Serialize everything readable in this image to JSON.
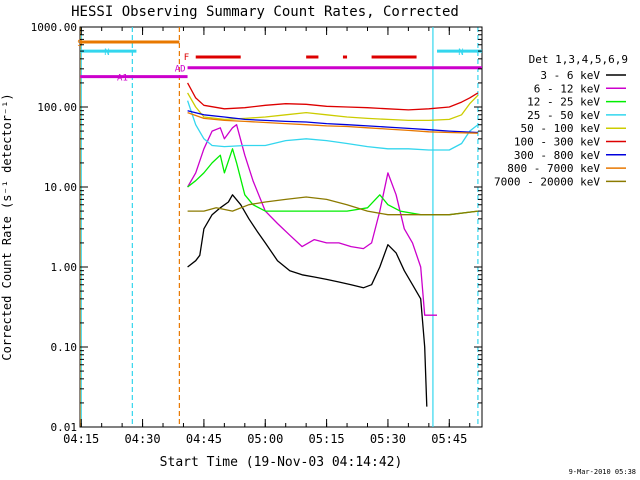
{
  "chart_data": {
    "type": "line",
    "title": "HESSI Observing Summary Count Rates, Corrected",
    "xlabel": "Start Time (19-Nov-03 04:14:42)",
    "ylabel": "Corrected Count Rate (s⁻¹ detector⁻¹)",
    "y_log_scale": true,
    "ylim": [
      0.01,
      1000
    ],
    "x_time_range": [
      "04:14:42",
      "05:53:00"
    ],
    "x_ticks": [
      "04:15",
      "04:30",
      "04:45",
      "05:00",
      "05:15",
      "05:30",
      "05:45"
    ],
    "y_ticks": [
      "0.01",
      "0.10",
      "1.00",
      "10.00",
      "100.00",
      "1000.00"
    ],
    "legend_title": "Det 1,3,4,5,6,9",
    "legend_position": "right",
    "footer": "9-Mar-2010 05:38",
    "markers": {
      "flags": [
        {
          "label": "S",
          "color": "#e87800",
          "y": 650,
          "t0": "04:14:45",
          "t1": "04:39:00"
        },
        {
          "label": "N",
          "color": "#33d6ee",
          "y": 500,
          "t0": "04:14:45",
          "t1": "04:28:30"
        },
        {
          "label": "N",
          "color": "#33d6ee",
          "y": 500,
          "t0": "05:42:00",
          "t1": "05:53:00"
        },
        {
          "label": "AD",
          "color": "#cc00cc",
          "y": 310,
          "t0": "04:41:00",
          "t1": "05:53:00"
        },
        {
          "label": "A1",
          "color": "#cc00cc",
          "y": 240,
          "t0": "04:14:45",
          "t1": "04:41:00"
        }
      ],
      "flare_label": "F",
      "flare_segments": [
        [
          "04:43:00",
          "04:54:00"
        ],
        [
          "05:10:00",
          "05:13:00"
        ],
        [
          "05:19:00",
          "05:20:00"
        ],
        [
          "05:26:00",
          "05:37:00"
        ]
      ],
      "vlines": [
        {
          "t": "04:14:50",
          "color": "#e87800",
          "style": "solid"
        },
        {
          "t": "04:15:00",
          "color": "#33d6ee",
          "style": "solid"
        },
        {
          "t": "04:27:30",
          "color": "#33d6ee",
          "style": "dashed"
        },
        {
          "t": "04:39:00",
          "color": "#e87800",
          "style": "dashed"
        },
        {
          "t": "05:41:00",
          "color": "#33d6ee",
          "style": "solid"
        },
        {
          "t": "05:52:00",
          "color": "#33d6ee",
          "style": "dashed"
        }
      ]
    },
    "series": [
      {
        "name": "3 - 6 keV",
        "color": "#000000",
        "points": [
          [
            "04:41:00",
            1.0
          ],
          [
            "04:43:00",
            1.2
          ],
          [
            "04:44:00",
            1.4
          ],
          [
            "04:45:00",
            3.0
          ],
          [
            "04:47:00",
            4.5
          ],
          [
            "04:49:00",
            5.5
          ],
          [
            "04:51:00",
            6.5
          ],
          [
            "04:52:00",
            8.0
          ],
          [
            "04:54:00",
            6.0
          ],
          [
            "04:56:00",
            4.0
          ],
          [
            "04:58:00",
            2.8
          ],
          [
            "05:00:00",
            2.0
          ],
          [
            "05:03:00",
            1.2
          ],
          [
            "05:06:00",
            0.9
          ],
          [
            "05:09:00",
            0.8
          ],
          [
            "05:12:00",
            0.75
          ],
          [
            "05:15:00",
            0.7
          ],
          [
            "05:18:00",
            0.65
          ],
          [
            "05:21:00",
            0.6
          ],
          [
            "05:24:00",
            0.55
          ],
          [
            "05:26:00",
            0.6
          ],
          [
            "05:28:00",
            1.0
          ],
          [
            "05:30:00",
            1.9
          ],
          [
            "05:32:00",
            1.5
          ],
          [
            "05:34:00",
            0.9
          ],
          [
            "05:36:00",
            0.6
          ],
          [
            "05:38:00",
            0.4
          ],
          [
            "05:39:00",
            0.1
          ],
          [
            "05:39:30",
            0.018
          ]
        ]
      },
      {
        "name": "6 - 12 keV",
        "color": "#cc00cc",
        "points": [
          [
            "04:41:00",
            10.0
          ],
          [
            "04:43:00",
            15.0
          ],
          [
            "04:45:00",
            30.0
          ],
          [
            "04:47:00",
            50.0
          ],
          [
            "04:49:00",
            55.0
          ],
          [
            "04:50:00",
            40.0
          ],
          [
            "04:52:00",
            55.0
          ],
          [
            "04:53:00",
            60.0
          ],
          [
            "04:55:00",
            25.0
          ],
          [
            "04:57:00",
            12.0
          ],
          [
            "05:00:00",
            5.0
          ],
          [
            "05:03:00",
            3.5
          ],
          [
            "05:06:00",
            2.5
          ],
          [
            "05:09:00",
            1.8
          ],
          [
            "05:12:00",
            2.2
          ],
          [
            "05:15:00",
            2.0
          ],
          [
            "05:18:00",
            2.0
          ],
          [
            "05:21:00",
            1.8
          ],
          [
            "05:24:00",
            1.7
          ],
          [
            "05:26:00",
            2.0
          ],
          [
            "05:28:00",
            5.0
          ],
          [
            "05:30:00",
            15.0
          ],
          [
            "05:32:00",
            8.0
          ],
          [
            "05:34:00",
            3.0
          ],
          [
            "05:36:00",
            2.0
          ],
          [
            "05:38:00",
            1.0
          ],
          [
            "05:39:00",
            0.25
          ],
          [
            "05:42:00",
            0.25
          ]
        ]
      },
      {
        "name": "12 - 25 keV",
        "color": "#00ee00",
        "points": [
          [
            "04:41:00",
            10.0
          ],
          [
            "04:43:00",
            12.0
          ],
          [
            "04:45:00",
            15.0
          ],
          [
            "04:47:00",
            20.0
          ],
          [
            "04:49:00",
            25.0
          ],
          [
            "04:50:00",
            15.0
          ],
          [
            "04:52:00",
            30.0
          ],
          [
            "04:53:00",
            20.0
          ],
          [
            "04:55:00",
            8.0
          ],
          [
            "04:57:00",
            6.0
          ],
          [
            "05:00:00",
            5.0
          ],
          [
            "05:05:00",
            5.0
          ],
          [
            "05:10:00",
            5.0
          ],
          [
            "05:15:00",
            5.0
          ],
          [
            "05:20:00",
            5.0
          ],
          [
            "05:25:00",
            5.5
          ],
          [
            "05:28:00",
            8.0
          ],
          [
            "05:30:00",
            6.0
          ],
          [
            "05:33:00",
            5.0
          ],
          [
            "05:38:00",
            4.5
          ],
          [
            "05:45:00",
            4.5
          ],
          [
            "05:52:00",
            5.0
          ]
        ]
      },
      {
        "name": "25 - 50 keV",
        "color": "#33d6ee",
        "points": [
          [
            "04:41:00",
            120.0
          ],
          [
            "04:43:00",
            60.0
          ],
          [
            "04:45:00",
            40.0
          ],
          [
            "04:47:00",
            33.0
          ],
          [
            "04:50:00",
            32.0
          ],
          [
            "04:55:00",
            33.0
          ],
          [
            "05:00:00",
            33.0
          ],
          [
            "05:05:00",
            38.0
          ],
          [
            "05:10:00",
            40.0
          ],
          [
            "05:15:00",
            38.0
          ],
          [
            "05:20:00",
            35.0
          ],
          [
            "05:25:00",
            32.0
          ],
          [
            "05:30:00",
            30.0
          ],
          [
            "05:35:00",
            30.0
          ],
          [
            "05:40:00",
            29.0
          ],
          [
            "05:45:00",
            29.0
          ],
          [
            "05:48:00",
            35.0
          ],
          [
            "05:50:00",
            50.0
          ],
          [
            "05:52:00",
            60.0
          ]
        ]
      },
      {
        "name": "50 - 100 keV",
        "color": "#cccc00",
        "points": [
          [
            "04:41:00",
            150.0
          ],
          [
            "04:43:00",
            100.0
          ],
          [
            "04:45:00",
            75.0
          ],
          [
            "04:50:00",
            70.0
          ],
          [
            "04:55:00",
            72.0
          ],
          [
            "05:00:00",
            75.0
          ],
          [
            "05:05:00",
            80.0
          ],
          [
            "05:10:00",
            85.0
          ],
          [
            "05:15:00",
            80.0
          ],
          [
            "05:20:00",
            75.0
          ],
          [
            "05:25:00",
            72.0
          ],
          [
            "05:30:00",
            70.0
          ],
          [
            "05:35:00",
            68.0
          ],
          [
            "05:40:00",
            68.0
          ],
          [
            "05:45:00",
            70.0
          ],
          [
            "05:48:00",
            80.0
          ],
          [
            "05:50:00",
            110.0
          ],
          [
            "05:52:00",
            140.0
          ]
        ]
      },
      {
        "name": "100 - 300 keV",
        "color": "#dd0000",
        "points": [
          [
            "04:41:00",
            200.0
          ],
          [
            "04:43:00",
            130.0
          ],
          [
            "04:45:00",
            105.0
          ],
          [
            "04:50:00",
            95.0
          ],
          [
            "04:55:00",
            98.0
          ],
          [
            "05:00:00",
            105.0
          ],
          [
            "05:05:00",
            110.0
          ],
          [
            "05:10:00",
            108.0
          ],
          [
            "05:15:00",
            102.0
          ],
          [
            "05:20:00",
            100.0
          ],
          [
            "05:25:00",
            98.0
          ],
          [
            "05:30:00",
            95.0
          ],
          [
            "05:35:00",
            92.0
          ],
          [
            "05:40:00",
            95.0
          ],
          [
            "05:45:00",
            100.0
          ],
          [
            "05:48:00",
            115.0
          ],
          [
            "05:50:00",
            130.0
          ],
          [
            "05:52:00",
            150.0
          ]
        ]
      },
      {
        "name": "300 - 800 keV",
        "color": "#0000dd",
        "points": [
          [
            "04:41:00",
            90.0
          ],
          [
            "04:45:00",
            80.0
          ],
          [
            "04:50:00",
            75.0
          ],
          [
            "04:55:00",
            70.0
          ],
          [
            "05:00:00",
            68.0
          ],
          [
            "05:05:00",
            66.0
          ],
          [
            "05:10:00",
            65.0
          ],
          [
            "05:15:00",
            62.0
          ],
          [
            "05:20:00",
            60.0
          ],
          [
            "05:25:00",
            58.0
          ],
          [
            "05:30:00",
            56.0
          ],
          [
            "05:35:00",
            54.0
          ],
          [
            "05:40:00",
            52.0
          ],
          [
            "05:45:00",
            50.0
          ],
          [
            "05:52:00",
            48.0
          ]
        ]
      },
      {
        "name": "800 - 7000 keV",
        "color": "#e87800",
        "points": [
          [
            "04:41:00",
            85.0
          ],
          [
            "04:45:00",
            72.0
          ],
          [
            "04:50:00",
            68.0
          ],
          [
            "04:55:00",
            66.0
          ],
          [
            "05:00:00",
            64.0
          ],
          [
            "05:05:00",
            62.0
          ],
          [
            "05:10:00",
            60.0
          ],
          [
            "05:15:00",
            58.0
          ],
          [
            "05:20:00",
            57.0
          ],
          [
            "05:25:00",
            55.0
          ],
          [
            "05:30:00",
            53.0
          ],
          [
            "05:35:00",
            51.0
          ],
          [
            "05:40:00",
            49.0
          ],
          [
            "05:45:00",
            48.0
          ],
          [
            "05:52:00",
            47.0
          ]
        ]
      },
      {
        "name": "7000 - 20000 keV",
        "color": "#8b7a00",
        "points": [
          [
            "04:41:00",
            5.0
          ],
          [
            "04:45:00",
            5.0
          ],
          [
            "04:48:00",
            5.5
          ],
          [
            "04:52:00",
            5.0
          ],
          [
            "04:56:00",
            6.0
          ],
          [
            "05:00:00",
            6.5
          ],
          [
            "05:05:00",
            7.0
          ],
          [
            "05:10:00",
            7.5
          ],
          [
            "05:15:00",
            7.0
          ],
          [
            "05:20:00",
            6.0
          ],
          [
            "05:25:00",
            5.0
          ],
          [
            "05:30:00",
            4.5
          ],
          [
            "05:35:00",
            4.5
          ],
          [
            "05:40:00",
            4.5
          ],
          [
            "05:45:00",
            4.5
          ],
          [
            "05:52:00",
            5.0
          ]
        ]
      }
    ]
  }
}
